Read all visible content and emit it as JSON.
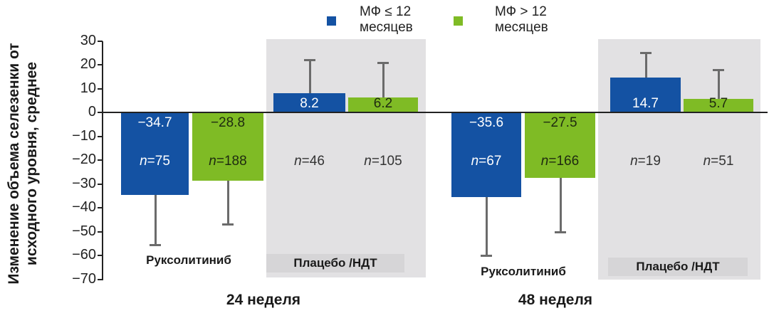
{
  "chart_data": {
    "type": "bar",
    "title": "",
    "ylabel": "Изменение объема селезенки от исходного уровня, среднее",
    "xlabel": "",
    "ylim": [
      -70,
      30
    ],
    "yticks": [
      "30",
      "20",
      "10",
      "0",
      "−10",
      "−20",
      "−30",
      "−40",
      "−50",
      "−60",
      "−70"
    ],
    "legend": [
      {
        "name": "МФ ≤ 12 месяцев",
        "line1": "МФ ≤ 12",
        "line2": "месяцев",
        "color": "#1452a3"
      },
      {
        "name": "МФ > 12 месяцев",
        "line1": "МФ > 12",
        "line2": "месяцев",
        "color": "#7fbb25"
      }
    ],
    "timepoints": [
      {
        "label": "24 неделя",
        "groups": [
          {
            "label": "Руксолитиниб",
            "shaded": false,
            "bars": [
              {
                "series": "МФ ≤ 12 месяцев",
                "value": -34.7,
                "value_label": "−34.7",
                "n_label": "75",
                "err": -55.5
              },
              {
                "series": "МФ > 12 месяцев",
                "value": -28.8,
                "value_label": "−28.8",
                "n_label": "188",
                "err": -47
              }
            ]
          },
          {
            "label": "Плацебо /НДТ",
            "shaded": true,
            "bars": [
              {
                "series": "МФ ≤ 12 месяцев",
                "value": 8.2,
                "value_label": "8.2",
                "n_label": "46",
                "err": 22
              },
              {
                "series": "МФ > 12 месяцев",
                "value": 6.2,
                "value_label": "6.2",
                "n_label": "105",
                "err": 21
              }
            ]
          }
        ]
      },
      {
        "label": "48 неделя",
        "groups": [
          {
            "label": "Руксолитиниб",
            "shaded": false,
            "bars": [
              {
                "series": "МФ ≤ 12 месяцев",
                "value": -35.6,
                "value_label": "−35.6",
                "n_label": "67",
                "err": -60
              },
              {
                "series": "МФ > 12 месяцев",
                "value": -27.5,
                "value_label": "−27.5",
                "n_label": "166",
                "err": -50
              }
            ]
          },
          {
            "label": "Плацебо /НДТ",
            "shaded": true,
            "bars": [
              {
                "series": "МФ ≤ 12 месяцев",
                "value": 14.7,
                "value_label": "14.7",
                "n_label": "19",
                "err": 25
              },
              {
                "series": "МФ > 12 месяцев",
                "value": 5.7,
                "value_label": "5.7",
                "n_label": "51",
                "err": 18
              }
            ]
          }
        ]
      }
    ]
  },
  "labels": {
    "n_prefix": "n",
    "n_eq": "="
  }
}
